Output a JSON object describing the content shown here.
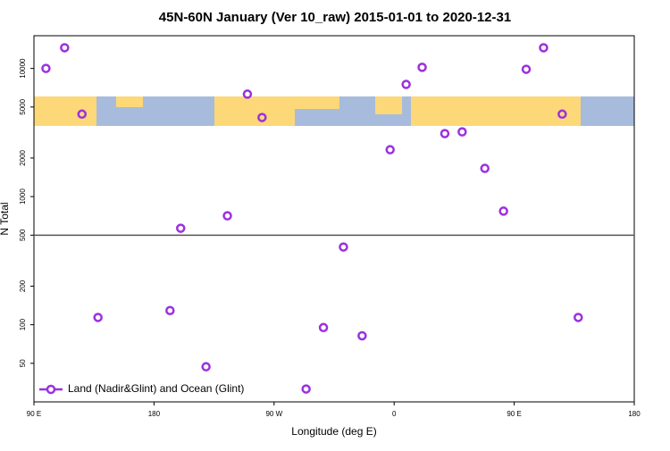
{
  "chart_data": {
    "type": "scatter",
    "title": "45N-60N January (Ver 10_raw)   2015-01-01 to 2020-12-31",
    "x_label": "Longitude (deg E)",
    "y_label": "N Total",
    "log_y": true,
    "xlim": [
      90,
      540
    ],
    "ylim": [
      25,
      18000
    ],
    "xticks": [
      {
        "value": 90,
        "label": "90 E"
      },
      180,
      {
        "value": 270,
        "label": "90 W"
      },
      {
        "value": 360,
        "label": "0"
      },
      {
        "value": 450,
        "label": "90 E"
      },
      {
        "value": 540,
        "label": "180"
      }
    ],
    "yticks": [
      50,
      100,
      200,
      500,
      1000,
      2000,
      5000,
      10000
    ],
    "hline": 500,
    "legend": "bottom-left",
    "series": [
      {
        "name": "Land (Nadir&Glint) and Ocean (Glint)",
        "color": "#9b30e0",
        "x": [
          99,
          113,
          126,
          138,
          192,
          200,
          219,
          235,
          250,
          261,
          294,
          307,
          322,
          336,
          357,
          369,
          381,
          398,
          411,
          428,
          442,
          459,
          472,
          486,
          498
        ],
        "values": [
          10000,
          14500,
          4400,
          114,
          129,
          566,
          47,
          708,
          6300,
          4140,
          31.5,
          95,
          404,
          82,
          2320,
          7500,
          10200,
          3100,
          3200,
          1660,
          770,
          9850,
          14500,
          4400,
          114
        ]
      }
    ]
  }
}
